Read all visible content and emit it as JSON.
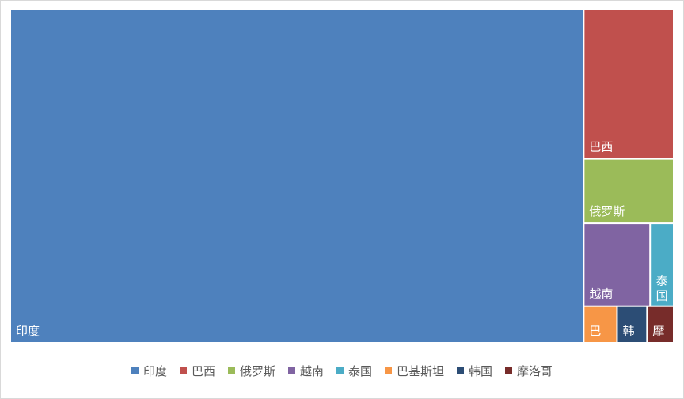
{
  "chart_data": {
    "type": "treemap",
    "legend_position": "bottom",
    "categories": [
      "印度",
      "巴西",
      "俄罗斯",
      "越南",
      "泰国",
      "巴基斯坦",
      "韩国",
      "摩洛哥"
    ],
    "values": [
      3130,
      220,
      95,
      90,
      32,
      20,
      18,
      16
    ],
    "colors": [
      "#4e81bd",
      "#c0504d",
      "#9bbb59",
      "#8064a2",
      "#4bacc6",
      "#f79646",
      "#2c4d75",
      "#772c2a"
    ],
    "tile_labels": [
      "印度",
      "巴西",
      "俄罗斯",
      "越南",
      "泰国",
      "巴",
      "韩",
      "摩"
    ]
  }
}
